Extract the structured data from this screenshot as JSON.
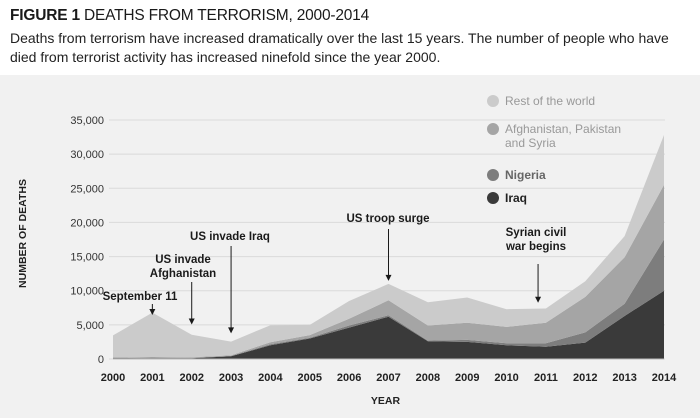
{
  "figure": {
    "label": "FIGURE 1",
    "title": "DEATHS FROM TERRORISM, 2000-2014",
    "subtitle": "Deaths from terrorism have increased dramatically over the last 15 years. The number of people who have died from terrorist activity has increased ninefold since the year 2000."
  },
  "chart_data": {
    "type": "area",
    "stacked": true,
    "xlabel": "YEAR",
    "ylabel": "NUMBER OF DEATHS",
    "ylim": [
      0,
      35000
    ],
    "yticks": [
      0,
      5000,
      10000,
      15000,
      20000,
      25000,
      30000,
      35000
    ],
    "ytick_labels": [
      "0",
      "5,000",
      "10,000",
      "15,000",
      "20,000",
      "25,000",
      "30,000",
      "35,000"
    ],
    "x": [
      "2000",
      "2001",
      "2002",
      "2003",
      "2004",
      "2005",
      "2006",
      "2007",
      "2008",
      "2009",
      "2010",
      "2011",
      "2012",
      "2013",
      "2014"
    ],
    "series": [
      {
        "name": "Iraq",
        "color": "#3a3a3a",
        "values": [
          50,
          100,
          100,
          400,
          2000,
          3000,
          4600,
          6200,
          2600,
          2500,
          2000,
          1800,
          2400,
          6300,
          10000
        ]
      },
      {
        "name": "Nigeria",
        "color": "#7d7d7d",
        "values": [
          100,
          100,
          50,
          50,
          150,
          100,
          300,
          200,
          100,
          300,
          300,
          500,
          1500,
          1800,
          7500
        ]
      },
      {
        "name": "Afghanistan, Pakistan and Syria",
        "color": "#a5a5a5",
        "values": [
          100,
          100,
          100,
          100,
          300,
          400,
          1000,
          2200,
          2200,
          2500,
          2400,
          3000,
          5200,
          6800,
          8000
        ]
      },
      {
        "name": "Rest of the world",
        "color": "#cbcbcb",
        "values": [
          3200,
          6500,
          3300,
          2000,
          2500,
          1500,
          2600,
          2400,
          3400,
          3700,
          2600,
          2100,
          2300,
          3100,
          7300
        ]
      }
    ],
    "legend_order": [
      "Rest of the world",
      "Afghanistan, Pakistan and Syria",
      "Nigeria",
      "Iraq"
    ],
    "legend_position": "top-right",
    "annotations": [
      {
        "year": 2001,
        "value": 6300,
        "label_lines": [
          "September 11"
        ]
      },
      {
        "year": 2002,
        "value": 4900,
        "label_lines": [
          "US invade",
          "Afghanistan"
        ]
      },
      {
        "year": 2003,
        "value": 3600,
        "label_lines": [
          "US invade Iraq"
        ]
      },
      {
        "year": 2007,
        "value": 11300,
        "label_lines": [
          "US troop surge"
        ]
      },
      {
        "year": 2010.8,
        "value": 8100,
        "label_lines": [
          "Syrian civil",
          "war begins"
        ]
      }
    ]
  }
}
